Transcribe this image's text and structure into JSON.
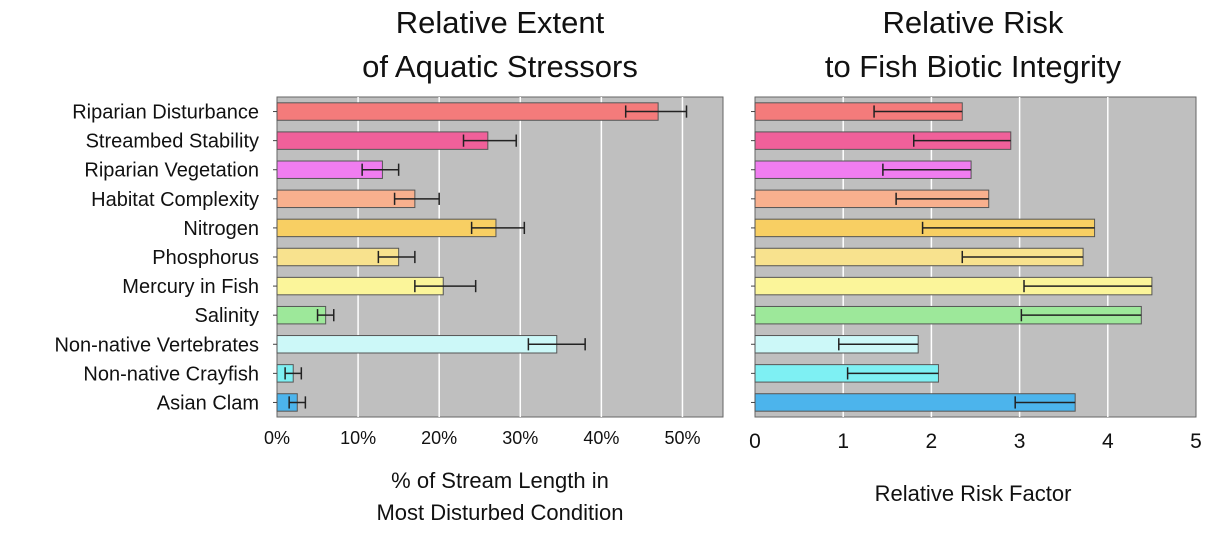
{
  "chart_data": [
    {
      "type": "bar",
      "orientation": "horizontal",
      "title_lines": [
        "Relative Extent",
        "of Aquatic Stressors"
      ],
      "xlabel_lines": [
        "% of Stream Length in",
        "Most Disturbed Condition"
      ],
      "categories": [
        "Riparian Disturbance",
        "Streambed Stability",
        "Riparian Vegetation",
        "Habitat Complexity",
        "Nitrogen",
        "Phosphorus",
        "Mercury in Fish",
        "Salinity",
        "Non-native Vertebrates",
        "Non-native Crayfish",
        "Asian Clam"
      ],
      "values": [
        47,
        26,
        13,
        17,
        27,
        15,
        20.5,
        6,
        34.5,
        2,
        2.5
      ],
      "error_low": [
        43,
        23,
        10.5,
        14.5,
        24,
        12.5,
        17,
        5,
        31,
        1,
        1.5
      ],
      "error_high": [
        50.5,
        29.5,
        15,
        20,
        30.5,
        17,
        24.5,
        7,
        38,
        3,
        3.5
      ],
      "xlim": [
        0,
        55
      ],
      "ticks": [
        0,
        10,
        20,
        30,
        40,
        50
      ],
      "tick_labels": [
        "0%",
        "10%",
        "20%",
        "30%",
        "40%",
        "50%"
      ],
      "grid": true
    },
    {
      "type": "bar",
      "orientation": "horizontal",
      "title_lines": [
        "Relative Risk",
        "to Fish Biotic Integrity"
      ],
      "xlabel_lines": [
        "Relative Risk Factor"
      ],
      "categories": [
        "Riparian Disturbance",
        "Streambed Stability",
        "Riparian Vegetation",
        "Habitat Complexity",
        "Nitrogen",
        "Phosphorus",
        "Mercury in Fish",
        "Salinity",
        "Non-native Vertebrates",
        "Non-native Crayfish",
        "Asian Clam"
      ],
      "values": [
        2.35,
        2.9,
        2.45,
        2.65,
        3.85,
        3.72,
        4.5,
        4.38,
        1.85,
        2.08,
        3.63
      ],
      "error_low": [
        1.35,
        1.8,
        1.45,
        1.6,
        1.9,
        2.35,
        3.05,
        3.02,
        0.95,
        1.05,
        2.95
      ],
      "xlim": [
        0,
        5
      ],
      "ticks": [
        0,
        1,
        2,
        3,
        4,
        5
      ],
      "tick_labels": [
        "0",
        "1",
        "2",
        "3",
        "4",
        "5"
      ],
      "grid": true
    }
  ],
  "bar_colors": [
    "#f47b7b",
    "#f0609a",
    "#f07df0",
    "#f8b08e",
    "#f8cf63",
    "#f8e28e",
    "#fbf59a",
    "#9de89a",
    "#ccf8f8",
    "#7ef0f3",
    "#4cb4ec"
  ],
  "plot_background": "#bfbfbf"
}
